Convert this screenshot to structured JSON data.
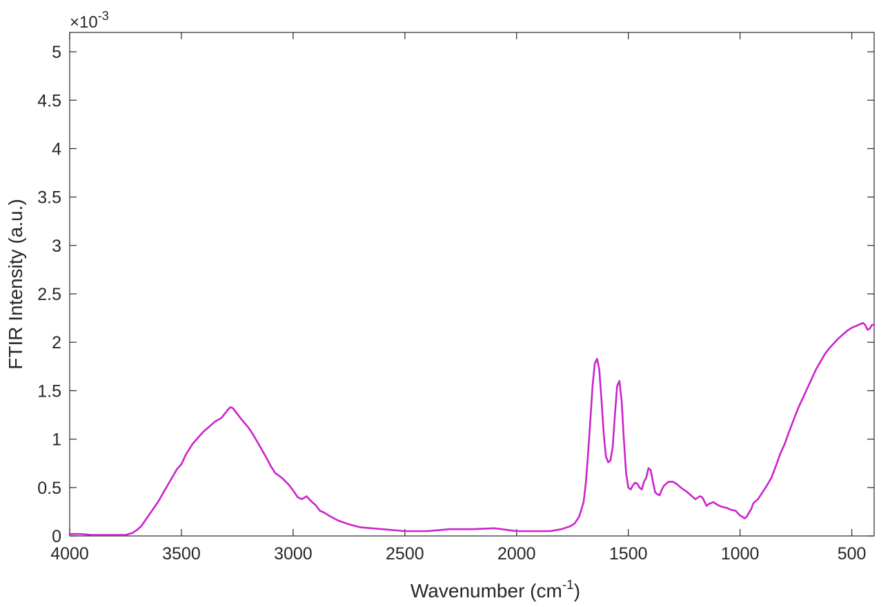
{
  "chart_data": {
    "type": "line",
    "title": "",
    "xlabel": "Wavenumber (cm",
    "xlabel_sup": "-1",
    "xlabel_end": ")",
    "ylabel": "FTIR Intensity (a.u.)",
    "y_multiplier_base": "×10",
    "y_multiplier_exp": "-3",
    "xlim": [
      4000,
      400
    ],
    "x_reversed": true,
    "ylim": [
      0,
      5.2
    ],
    "grid": false,
    "line_color": "#cc22cc",
    "x_ticks": [
      4000,
      3500,
      3000,
      2500,
      2000,
      1500,
      1000,
      500
    ],
    "x_tick_labels": [
      "4000",
      "3500",
      "3000",
      "2500",
      "2000",
      "1500",
      "1000",
      "500"
    ],
    "y_ticks": [
      0,
      0.5,
      1,
      1.5,
      2,
      2.5,
      3,
      3.5,
      4,
      4.5,
      5
    ],
    "y_tick_labels": [
      "0",
      "0.5",
      "1",
      "1.5",
      "2",
      "2.5",
      "3",
      "3.5",
      "4",
      "4.5",
      "5"
    ],
    "series": [
      {
        "x": [
          4000,
          3950,
          3900,
          3850,
          3800,
          3750,
          3720,
          3700,
          3680,
          3650,
          3620,
          3600,
          3580,
          3550,
          3520,
          3500,
          3480,
          3450,
          3420,
          3400,
          3380,
          3350,
          3320,
          3300,
          3290,
          3280,
          3270,
          3250,
          3230,
          3200,
          3180,
          3150,
          3120,
          3100,
          3080,
          3050,
          3020,
          3000,
          2980,
          2960,
          2940,
          2920,
          2900,
          2880,
          2860,
          2840,
          2800,
          2750,
          2700,
          2600,
          2500,
          2400,
          2300,
          2200,
          2100,
          2000,
          1950,
          1900,
          1850,
          1800,
          1760,
          1740,
          1720,
          1700,
          1690,
          1680,
          1670,
          1660,
          1650,
          1640,
          1630,
          1620,
          1610,
          1600,
          1590,
          1580,
          1570,
          1560,
          1550,
          1540,
          1530,
          1520,
          1510,
          1500,
          1490,
          1480,
          1470,
          1460,
          1450,
          1440,
          1430,
          1420,
          1410,
          1400,
          1390,
          1380,
          1370,
          1360,
          1350,
          1340,
          1320,
          1300,
          1280,
          1260,
          1240,
          1220,
          1200,
          1180,
          1170,
          1160,
          1150,
          1140,
          1120,
          1100,
          1080,
          1060,
          1040,
          1020,
          1000,
          990,
          980,
          970,
          960,
          950,
          940,
          920,
          900,
          880,
          860,
          840,
          820,
          800,
          780,
          760,
          740,
          720,
          700,
          680,
          660,
          640,
          620,
          600,
          580,
          560,
          540,
          520,
          500,
          480,
          460,
          450,
          440,
          430,
          420,
          410,
          400
        ],
        "y": [
          0.02,
          0.02,
          0.01,
          0.01,
          0.01,
          0.01,
          0.03,
          0.06,
          0.1,
          0.2,
          0.3,
          0.37,
          0.45,
          0.57,
          0.69,
          0.74,
          0.84,
          0.95,
          1.03,
          1.08,
          1.12,
          1.18,
          1.22,
          1.28,
          1.31,
          1.33,
          1.32,
          1.26,
          1.2,
          1.12,
          1.05,
          0.93,
          0.81,
          0.72,
          0.65,
          0.6,
          0.53,
          0.47,
          0.4,
          0.38,
          0.41,
          0.36,
          0.32,
          0.26,
          0.24,
          0.21,
          0.16,
          0.12,
          0.09,
          0.07,
          0.05,
          0.05,
          0.07,
          0.07,
          0.08,
          0.05,
          0.05,
          0.05,
          0.05,
          0.07,
          0.1,
          0.13,
          0.2,
          0.35,
          0.55,
          0.85,
          1.2,
          1.55,
          1.78,
          1.83,
          1.72,
          1.4,
          1.05,
          0.82,
          0.76,
          0.78,
          0.92,
          1.25,
          1.55,
          1.6,
          1.4,
          1.0,
          0.65,
          0.5,
          0.48,
          0.52,
          0.55,
          0.54,
          0.5,
          0.48,
          0.56,
          0.6,
          0.7,
          0.68,
          0.56,
          0.45,
          0.43,
          0.42,
          0.48,
          0.52,
          0.56,
          0.56,
          0.53,
          0.49,
          0.46,
          0.42,
          0.38,
          0.41,
          0.4,
          0.36,
          0.31,
          0.33,
          0.35,
          0.32,
          0.3,
          0.29,
          0.27,
          0.26,
          0.21,
          0.2,
          0.18,
          0.2,
          0.24,
          0.28,
          0.34,
          0.38,
          0.45,
          0.52,
          0.6,
          0.72,
          0.85,
          0.95,
          1.08,
          1.2,
          1.32,
          1.42,
          1.52,
          1.62,
          1.72,
          1.8,
          1.88,
          1.94,
          1.99,
          2.04,
          2.08,
          2.12,
          2.15,
          2.17,
          2.19,
          2.2,
          2.18,
          2.13,
          2.14,
          2.18,
          2.18
        ]
      }
    ]
  }
}
